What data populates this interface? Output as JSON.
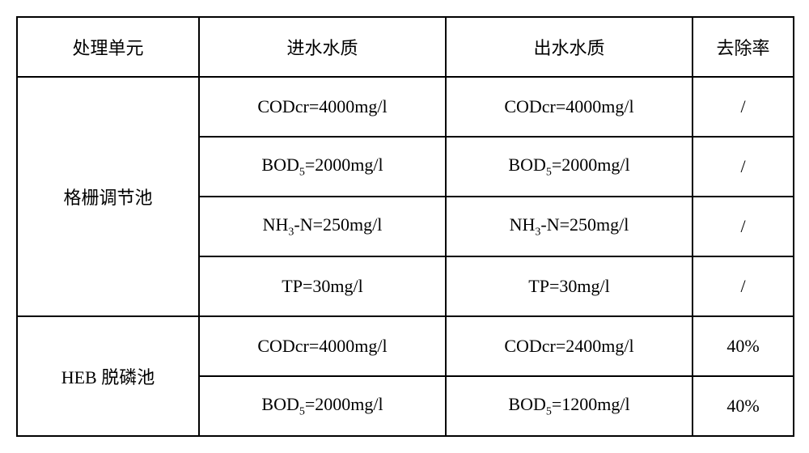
{
  "table": {
    "headers": [
      "处理单元",
      "进水水质",
      "出水水质",
      "去除率"
    ],
    "rows": [
      {
        "unit": "格栅调节池",
        "rowspan": 4,
        "in": "CODcr=4000mg/l",
        "out": "CODcr=4000mg/l",
        "rate": "/"
      },
      {
        "in": "BOD₅=2000mg/l",
        "out": "BOD₅=2000mg/l",
        "rate": "/"
      },
      {
        "in": "NH₃-N=250mg/l",
        "out": "NH₃-N=250mg/l",
        "rate": "/"
      },
      {
        "in": "TP=30mg/l",
        "out": "TP=30mg/l",
        "rate": "/"
      },
      {
        "unit": "HEB 脱磷池",
        "rowspan": 2,
        "in": "CODcr=4000mg/l",
        "out": "CODcr=2400mg/l",
        "rate": "40%"
      },
      {
        "in": "BOD₅=2000mg/l",
        "out": "BOD₅=1200mg/l",
        "rate": "40%"
      }
    ]
  }
}
